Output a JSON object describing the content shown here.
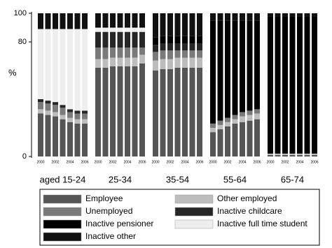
{
  "chart_data": {
    "type": "stacked-bar",
    "y_label": "%",
    "groups": [
      "aged 15-24",
      "25-34",
      "35-54",
      "55-64",
      "65-74"
    ],
    "categories": [
      "2000",
      null,
      "2002",
      null,
      "2004",
      null,
      "2006"
    ],
    "ylim": [
      0,
      100
    ],
    "yticks": [
      0,
      80,
      100
    ],
    "series": [
      {
        "name": "Employee",
        "color": "#555555",
        "values": [
          [
            30,
            29,
            28,
            26,
            24,
            23,
            23
          ],
          [
            62,
            62,
            63,
            63,
            63,
            63,
            65
          ],
          [
            60,
            61,
            61,
            62,
            62,
            62,
            62
          ],
          [
            17,
            19,
            21,
            23,
            24,
            25,
            26
          ],
          [
            1,
            1,
            1,
            1,
            1,
            1,
            1
          ]
        ]
      },
      {
        "name": "Other employed",
        "color": "#bdbdbd",
        "values": [
          [
            3,
            3,
            3,
            3,
            3,
            3,
            3
          ],
          [
            6,
            6,
            6,
            6,
            6,
            6,
            6
          ],
          [
            7,
            7,
            7,
            7,
            7,
            7,
            7
          ],
          [
            3,
            3,
            3,
            3,
            4,
            4,
            4
          ],
          [
            1,
            1,
            1,
            1,
            1,
            1,
            1
          ]
        ]
      },
      {
        "name": "Unemployed",
        "color": "#7a7a7a",
        "values": [
          [
            5,
            5,
            5,
            5,
            4,
            4,
            4
          ],
          [
            8,
            8,
            7,
            7,
            7,
            7,
            5
          ],
          [
            6,
            6,
            6,
            5,
            5,
            5,
            5
          ],
          [
            3,
            3,
            3,
            3,
            3,
            3,
            3
          ],
          [
            0,
            0,
            0,
            0,
            0,
            0,
            0
          ]
        ]
      },
      {
        "name": "Inactive childcare",
        "color": "#262626",
        "values": [
          [
            2,
            2,
            2,
            2,
            2,
            2,
            2
          ],
          [
            11,
            11,
            11,
            11,
            11,
            11,
            11
          ],
          [
            5,
            5,
            5,
            5,
            5,
            5,
            5
          ],
          [
            0,
            0,
            0,
            0,
            0,
            0,
            0
          ],
          [
            0,
            0,
            0,
            0,
            0,
            0,
            0
          ]
        ]
      },
      {
        "name": "Inactive full time student",
        "color": "#eeeeee",
        "values": [
          [
            49,
            50,
            51,
            53,
            56,
            57,
            57
          ],
          [
            3,
            3,
            3,
            3,
            3,
            3,
            3
          ],
          [
            0,
            0,
            0,
            0,
            0,
            0,
            0
          ],
          [
            0,
            0,
            0,
            0,
            0,
            0,
            0
          ],
          [
            0,
            0,
            0,
            0,
            0,
            0,
            0
          ]
        ]
      },
      {
        "name": "Inactive pensioner",
        "color": "#000000",
        "values": [
          [
            0,
            0,
            0,
            0,
            0,
            0,
            0
          ],
          [
            1,
            1,
            1,
            1,
            1,
            1,
            1
          ],
          [
            5,
            5,
            5,
            5,
            5,
            5,
            5
          ],
          [
            72,
            70,
            68,
            66,
            64,
            63,
            62
          ],
          [
            96,
            96,
            96,
            96,
            96,
            96,
            96
          ]
        ]
      },
      {
        "name": "Inactive other",
        "color": "#111111",
        "values": [
          [
            11,
            11,
            11,
            11,
            11,
            11,
            11
          ],
          [
            9,
            9,
            9,
            9,
            9,
            9,
            9
          ],
          [
            17,
            16,
            16,
            16,
            16,
            16,
            16
          ],
          [
            5,
            5,
            5,
            5,
            5,
            5,
            5
          ],
          [
            2,
            2,
            2,
            2,
            2,
            2,
            2
          ]
        ]
      }
    ]
  }
}
